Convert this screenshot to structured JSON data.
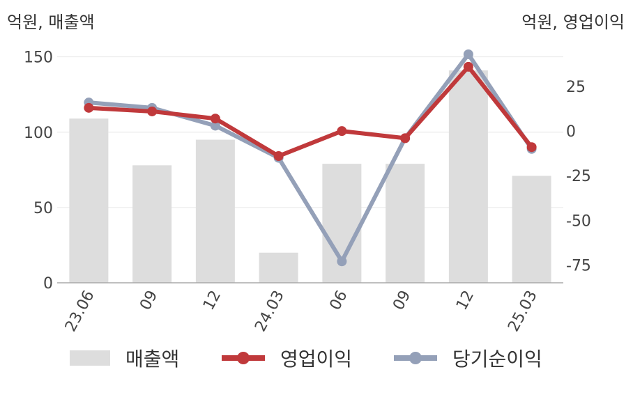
{
  "chart_data": {
    "type": "bar+line",
    "categories": [
      "23.06",
      "09",
      "12",
      "24.03",
      "06",
      "09",
      "12",
      "25.03"
    ],
    "y_left": {
      "unit_label": "억원, 매출액",
      "ylim": [
        0,
        160
      ],
      "ticks": [
        0,
        50,
        100,
        150
      ]
    },
    "y_right": {
      "unit_label": "억원, 영업이익",
      "ylim": [
        -85,
        50
      ],
      "ticks": [
        -75,
        -50,
        -25,
        0,
        25
      ]
    },
    "series": [
      {
        "name": "매출액",
        "type": "bar",
        "axis": "left",
        "color": "#dddddd",
        "values": [
          109,
          78,
          95,
          20,
          79,
          79,
          141,
          71
        ]
      },
      {
        "name": "영업이익",
        "type": "line",
        "axis": "right",
        "color": "#c0393b",
        "values": [
          13,
          11,
          7,
          -14,
          0,
          -4,
          36,
          -9
        ]
      },
      {
        "name": "당기순이익",
        "type": "line",
        "axis": "right",
        "color": "#94a0b8",
        "values": [
          16,
          13,
          3,
          -15,
          -73,
          -4,
          43,
          -10
        ]
      }
    ],
    "grid": true,
    "legend_position": "bottom"
  }
}
